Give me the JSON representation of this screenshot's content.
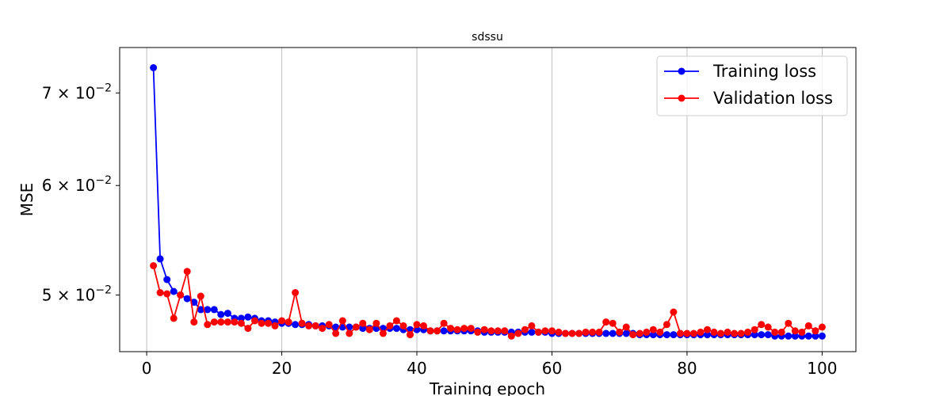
{
  "chart_data": {
    "type": "line",
    "title": "sdssu",
    "xlabel": "Training epoch",
    "ylabel": "MSE",
    "xlim": [
      -4,
      105
    ],
    "ylim": [
      0.0455,
      0.0755
    ],
    "yscale": "log",
    "grid": "x-major",
    "legend_position": "top-right",
    "x_ticks": [
      0,
      20,
      40,
      60,
      80,
      100
    ],
    "x_tick_labels": [
      "0",
      "20",
      "40",
      "60",
      "80",
      "100"
    ],
    "y_ticks": [
      0.05,
      0.06,
      0.07
    ],
    "y_tick_labels": [
      {
        "base": "5 × 10",
        "exp": "−2"
      },
      {
        "base": "6 × 10",
        "exp": "−2"
      },
      {
        "base": "7 × 10",
        "exp": "−2"
      }
    ],
    "x": [
      1,
      2,
      3,
      4,
      5,
      6,
      7,
      8,
      9,
      10,
      11,
      12,
      13,
      14,
      15,
      16,
      17,
      18,
      19,
      20,
      21,
      22,
      23,
      24,
      25,
      26,
      27,
      28,
      29,
      30,
      31,
      32,
      33,
      34,
      35,
      36,
      37,
      38,
      39,
      40,
      41,
      42,
      43,
      44,
      45,
      46,
      47,
      48,
      49,
      50,
      51,
      52,
      53,
      54,
      55,
      56,
      57,
      58,
      59,
      60,
      61,
      62,
      63,
      64,
      65,
      66,
      67,
      68,
      69,
      70,
      71,
      72,
      73,
      74,
      75,
      76,
      77,
      78,
      79,
      80,
      81,
      82,
      83,
      84,
      85,
      86,
      87,
      88,
      89,
      90,
      91,
      92,
      93,
      94,
      95,
      96,
      97,
      98,
      99,
      100
    ],
    "series": [
      {
        "name": "Training loss",
        "color": "#0000ff",
        "values": [
          0.073,
          0.0531,
          0.0513,
          0.0503,
          0.05,
          0.0497,
          0.0494,
          0.0488,
          0.0488,
          0.0488,
          0.0484,
          0.0485,
          0.0481,
          0.0481,
          0.0482,
          0.0481,
          0.0479,
          0.0479,
          0.0478,
          0.0477,
          0.0477,
          0.0476,
          0.0476,
          0.0476,
          0.0475,
          0.0475,
          0.0475,
          0.0474,
          0.0474,
          0.0474,
          0.0474,
          0.0473,
          0.0473,
          0.0473,
          0.0473,
          0.0473,
          0.0473,
          0.0472,
          0.0472,
          0.0472,
          0.0472,
          0.0471,
          0.0471,
          0.0471,
          0.0471,
          0.0471,
          0.0471,
          0.0471,
          0.0471,
          0.047,
          0.047,
          0.047,
          0.047,
          0.047,
          0.047,
          0.047,
          0.047,
          0.047,
          0.047,
          0.0469,
          0.0469,
          0.0469,
          0.0469,
          0.0469,
          0.0469,
          0.0469,
          0.0469,
          0.0469,
          0.0469,
          0.0469,
          0.0469,
          0.0469,
          0.0468,
          0.0468,
          0.0468,
          0.0468,
          0.0468,
          0.0468,
          0.0468,
          0.0468,
          0.0468,
          0.0468,
          0.0468,
          0.0468,
          0.0468,
          0.0468,
          0.0468,
          0.0468,
          0.0468,
          0.0468,
          0.0468,
          0.0468,
          0.0467,
          0.0467,
          0.0467,
          0.0467,
          0.0467,
          0.0467,
          0.0467,
          0.0467
        ]
      },
      {
        "name": "Validation loss",
        "color": "#ff0000",
        "values": [
          0.0525,
          0.0502,
          0.0501,
          0.0481,
          0.05,
          0.052,
          0.0478,
          0.0499,
          0.0476,
          0.0478,
          0.0478,
          0.0478,
          0.0478,
          0.0477,
          0.0473,
          0.0479,
          0.0477,
          0.0477,
          0.0475,
          0.0479,
          0.0478,
          0.0502,
          0.0477,
          0.0475,
          0.0475,
          0.0473,
          0.0476,
          0.0469,
          0.0479,
          0.0469,
          0.0474,
          0.0477,
          0.0472,
          0.0477,
          0.0469,
          0.0475,
          0.0479,
          0.0475,
          0.0468,
          0.0476,
          0.0475,
          0.0471,
          0.0471,
          0.0477,
          0.0473,
          0.0472,
          0.0473,
          0.0473,
          0.047,
          0.0472,
          0.0471,
          0.0471,
          0.0471,
          0.0467,
          0.0469,
          0.0472,
          0.0475,
          0.047,
          0.0471,
          0.0471,
          0.047,
          0.0469,
          0.0469,
          0.0469,
          0.047,
          0.047,
          0.047,
          0.0478,
          0.0477,
          0.047,
          0.0474,
          0.0468,
          0.0469,
          0.047,
          0.0472,
          0.047,
          0.0476,
          0.0486,
          0.0469,
          0.0469,
          0.0469,
          0.047,
          0.0472,
          0.047,
          0.0469,
          0.047,
          0.0469,
          0.0469,
          0.047,
          0.0472,
          0.0476,
          0.0474,
          0.047,
          0.047,
          0.0477,
          0.0471,
          0.047,
          0.0475,
          0.0471,
          0.0474
        ]
      }
    ]
  }
}
